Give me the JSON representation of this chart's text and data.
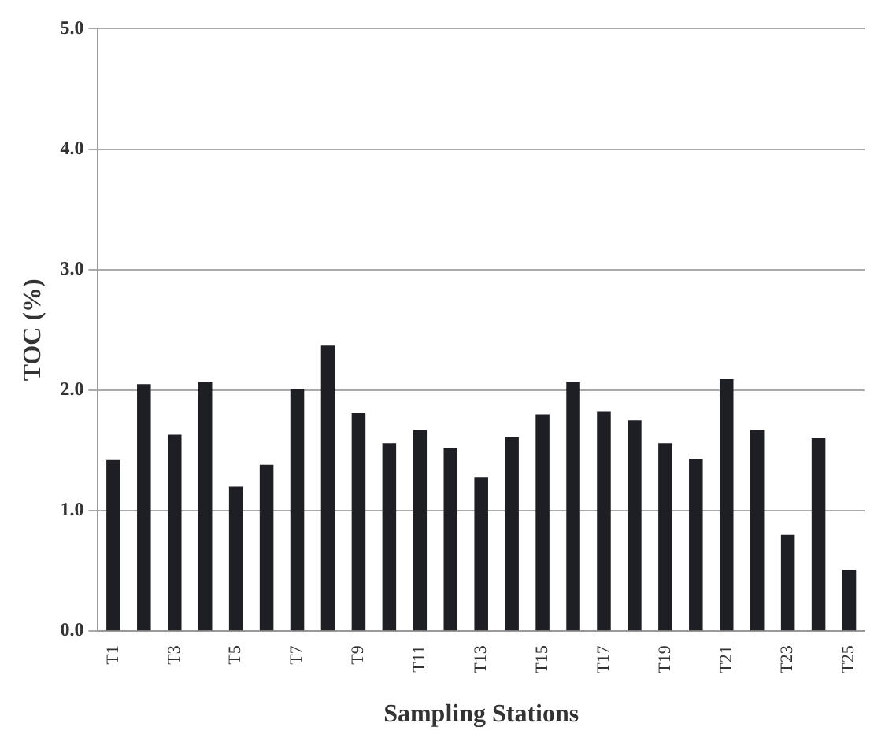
{
  "chart_data": {
    "type": "bar",
    "xlabel": "Sampling Stations",
    "ylabel": "TOC (%)",
    "categories": [
      "T1",
      null,
      "T3",
      null,
      "T5",
      null,
      "T7",
      null,
      "T9",
      null,
      "T11",
      null,
      "T13",
      null,
      "T15",
      null,
      "T17",
      null,
      "T19",
      null,
      "T21",
      null,
      "T23",
      null,
      "T25"
    ],
    "values": [
      1.42,
      2.05,
      1.63,
      2.07,
      1.2,
      1.38,
      2.01,
      2.37,
      1.81,
      1.56,
      1.67,
      1.52,
      1.28,
      1.61,
      1.8,
      2.07,
      1.82,
      1.75,
      1.56,
      1.43,
      2.09,
      1.67,
      0.8,
      1.6,
      0.51
    ],
    "color": "#1e1f24",
    "ylim": [
      0,
      5
    ],
    "yticks": [
      {
        "value": 0,
        "label": "0.0"
      },
      {
        "value": 1,
        "label": "1.0"
      },
      {
        "value": 2,
        "label": "2.0"
      },
      {
        "value": 3,
        "label": "3.0"
      },
      {
        "value": 4,
        "label": "4.0"
      },
      {
        "value": 5,
        "label": "5.0"
      }
    ],
    "grid": "y"
  }
}
